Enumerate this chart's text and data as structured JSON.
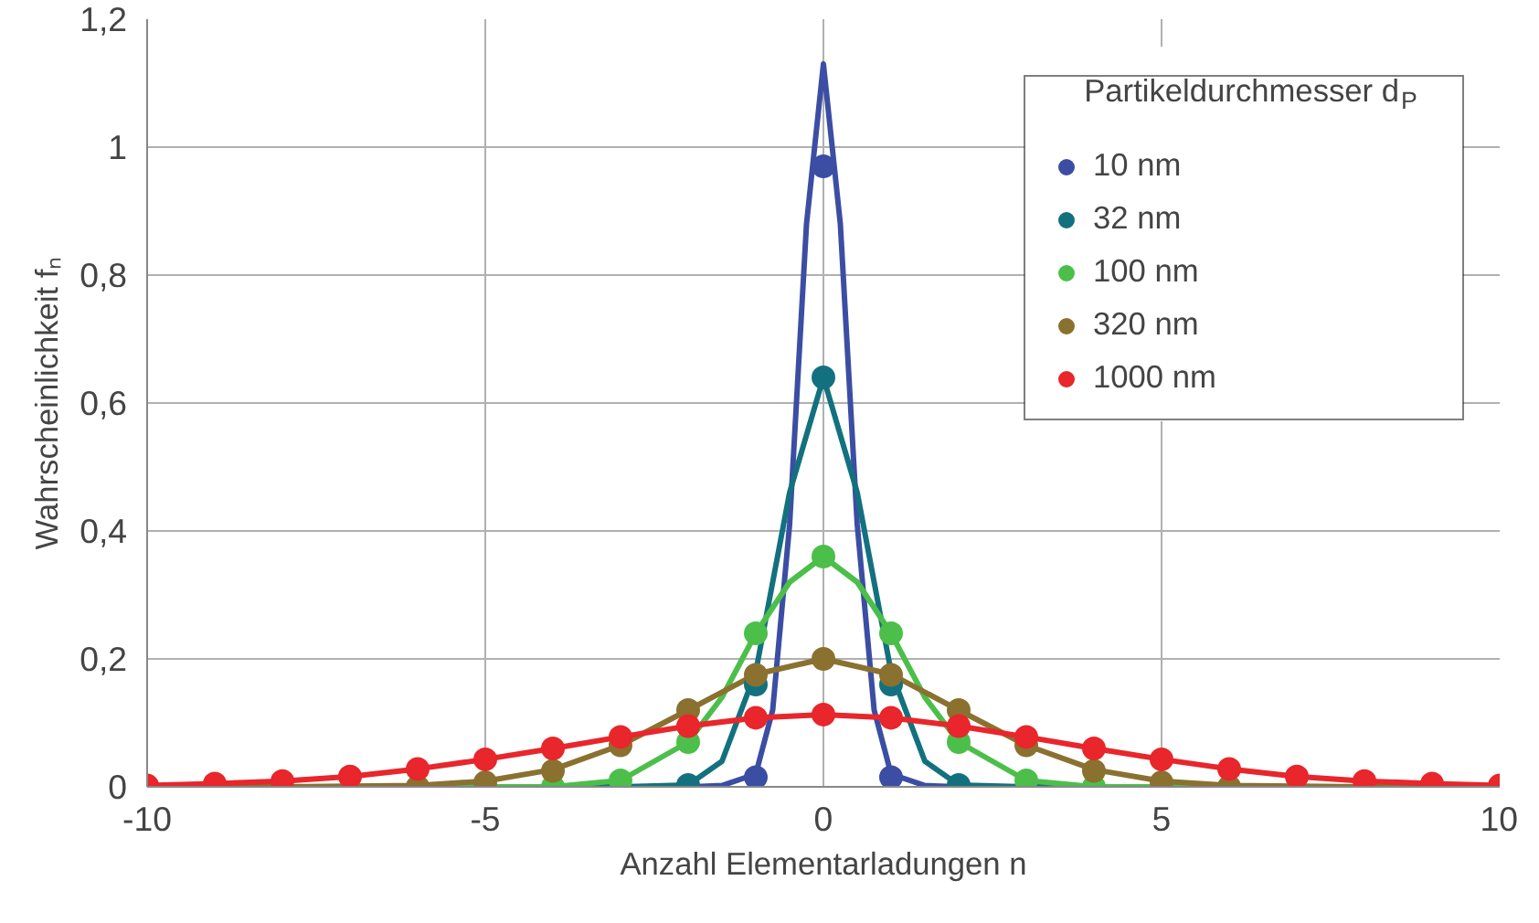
{
  "chart_data": {
    "type": "scatter",
    "xlabel": "Anzahl Elementarladungen n",
    "ylabel": "Wahrscheinlichkeit fₙ",
    "legend_title": "Partikeldurchmesser d$_{P}$",
    "legend": "top right",
    "grid": true,
    "marker": "circle",
    "xlim": [
      -10,
      10
    ],
    "xticks": [
      -10,
      -5,
      0,
      5,
      10
    ],
    "ylim": [
      0,
      1.2
    ],
    "yticks": [
      {
        "value": 0,
        "label": "0"
      },
      {
        "value": 0.2,
        "label": "0,2"
      },
      {
        "value": 0.4,
        "label": "0,4"
      },
      {
        "value": 0.6,
        "label": "0,6"
      },
      {
        "value": 0.8,
        "label": "0,8"
      },
      {
        "value": 1,
        "label": "1"
      },
      {
        "value": 1.2,
        "label": "1,2"
      }
    ],
    "series": [
      {
        "type": "line",
        "line_style": "solid",
        "marker": "none",
        "color": "#3b4ea3",
        "x": [
          -10,
          -2,
          -1.5,
          -1,
          -0.75,
          -0.5,
          -0.25,
          0,
          0.25,
          0.5,
          0.75,
          1,
          1.5,
          2,
          10
        ],
        "values": [
          0,
          0,
          0.002,
          0.02,
          0.12,
          0.41,
          0.88,
          1.13,
          0.88,
          0.41,
          0.12,
          0.02,
          0.002,
          0,
          0
        ]
      },
      {
        "type": "line",
        "line_style": "solid",
        "marker": "none",
        "color": "#13717f",
        "x": [
          -10,
          -3,
          -2,
          -1.5,
          -1,
          -0.5,
          0,
          0.5,
          1,
          1.5,
          2,
          3,
          10
        ],
        "values": [
          0,
          0,
          0.003,
          0.04,
          0.18,
          0.46,
          0.64,
          0.46,
          0.18,
          0.04,
          0.003,
          0,
          0
        ]
      },
      {
        "type": "line",
        "line_style": "solid",
        "marker": "none",
        "color": "#4cbf4a",
        "x": [
          -10,
          -4,
          -3,
          -2,
          -1.5,
          -1,
          -0.5,
          0,
          0.5,
          1,
          1.5,
          2,
          3,
          4,
          10
        ],
        "values": [
          0,
          0,
          0.01,
          0.07,
          0.14,
          0.24,
          0.32,
          0.36,
          0.32,
          0.24,
          0.14,
          0.07,
          0.01,
          0,
          0
        ]
      },
      {
        "type": "line",
        "line_style": "solid",
        "marker": "none",
        "color": "#8a7130",
        "x": [
          -10,
          -8,
          -6,
          -5,
          -4,
          -3,
          -2,
          -1,
          0,
          1,
          2,
          3,
          4,
          5,
          6,
          8,
          10
        ],
        "values": [
          0,
          0,
          0.002,
          0.009,
          0.027,
          0.065,
          0.12,
          0.176,
          0.2,
          0.176,
          0.12,
          0.065,
          0.027,
          0.009,
          0.002,
          0,
          0
        ]
      },
      {
        "name": "10 nm",
        "color": "#3b4ea3",
        "x": [
          -1,
          0,
          1
        ],
        "values": [
          0.015,
          0.97,
          0.015
        ]
      },
      {
        "name": "32 nm",
        "color": "#13717f",
        "x": [
          -2,
          -1,
          0,
          1,
          2
        ],
        "values": [
          0.003,
          0.16,
          0.64,
          0.16,
          0.003
        ]
      },
      {
        "name": "100 nm",
        "color": "#4cbf4a",
        "x": [
          -4,
          -3,
          -2,
          -1,
          0,
          1,
          2,
          3,
          4
        ],
        "values": [
          0,
          0.01,
          0.07,
          0.24,
          0.36,
          0.24,
          0.07,
          0.01,
          0
        ]
      },
      {
        "name": "320 nm",
        "color": "#8a7130",
        "x": [
          -6,
          -5,
          -4,
          -3,
          -2,
          -1,
          0,
          1,
          2,
          3,
          4,
          5,
          6
        ],
        "values": [
          0,
          0.007,
          0.025,
          0.065,
          0.12,
          0.175,
          0.2,
          0.175,
          0.12,
          0.065,
          0.025,
          0.007,
          0
        ]
      },
      {
        "name": "1000 nm",
        "type": "line",
        "line_style": "solid",
        "marker": "circle",
        "color": "#e8262b",
        "x": [
          -10,
          -9,
          -8,
          -7,
          -6,
          -5,
          -4,
          -3,
          -2,
          -1,
          0,
          1,
          2,
          3,
          4,
          5,
          6,
          7,
          8,
          9,
          10
        ],
        "values": [
          0.002,
          0.005,
          0.009,
          0.016,
          0.028,
          0.043,
          0.06,
          0.078,
          0.095,
          0.108,
          0.113,
          0.108,
          0.095,
          0.078,
          0.06,
          0.043,
          0.028,
          0.016,
          0.009,
          0.005,
          0.002
        ]
      }
    ]
  }
}
